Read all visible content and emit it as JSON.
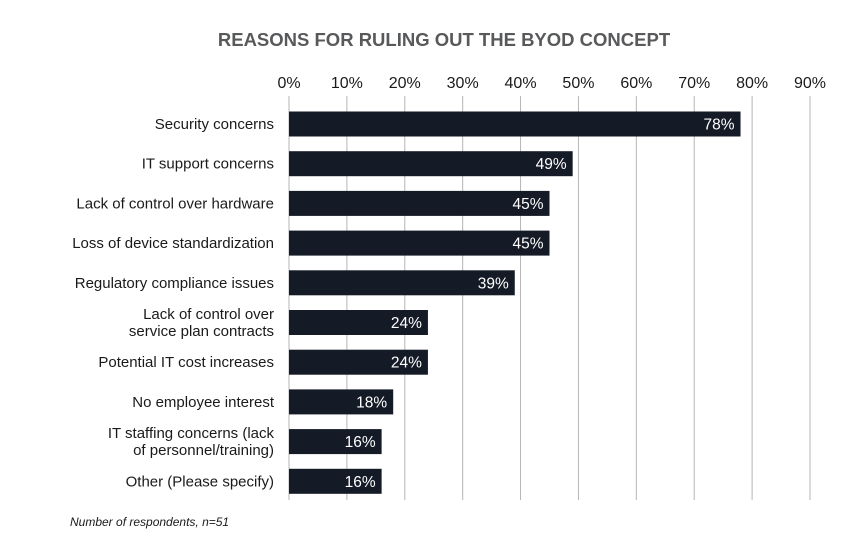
{
  "chart_data": {
    "type": "bar",
    "orientation": "horizontal",
    "title": "REASONS FOR RULING OUT THE BYOD CONCEPT",
    "categories": [
      [
        "Security concerns"
      ],
      [
        "IT support concerns"
      ],
      [
        "Lack of control over hardware"
      ],
      [
        "Loss of device standardization"
      ],
      [
        "Regulatory compliance issues"
      ],
      [
        "Lack of control over",
        "service plan contracts"
      ],
      [
        "Potential IT cost increases"
      ],
      [
        "No employee interest"
      ],
      [
        "IT staffing concerns (lack",
        "of personnel/training)"
      ],
      [
        "Other (Please specify)"
      ]
    ],
    "values": [
      78,
      49,
      45,
      45,
      39,
      24,
      24,
      18,
      16,
      16
    ],
    "value_labels": [
      "78%",
      "49%",
      "45%",
      "45%",
      "39%",
      "24%",
      "24%",
      "18%",
      "16%",
      "16%"
    ],
    "xlim": [
      0,
      90
    ],
    "ticks": [
      "0%",
      "10%",
      "20%",
      "30%",
      "40%",
      "50%",
      "60%",
      "70%",
      "80%",
      "90%"
    ],
    "axis_position": "top",
    "grid": true,
    "bar_color": "#141a26",
    "grid_color": "#b5b5b5"
  },
  "note": "Number of respondents, n=51"
}
